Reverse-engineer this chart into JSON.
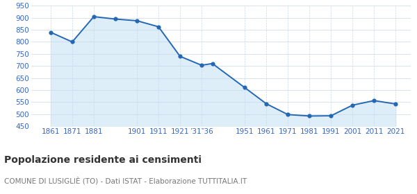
{
  "years": [
    1861,
    1871,
    1881,
    1891,
    1901,
    1911,
    1921,
    1931,
    1936,
    1951,
    1961,
    1971,
    1981,
    1991,
    2001,
    2011,
    2021
  ],
  "values": [
    840,
    800,
    905,
    895,
    888,
    863,
    740,
    703,
    710,
    610,
    543,
    498,
    492,
    493,
    537,
    556,
    542
  ],
  "x_ticks_pos": [
    1861,
    1871,
    1881,
    1901,
    1911,
    1921,
    1931,
    1951,
    1961,
    1971,
    1981,
    1991,
    2001,
    2011,
    2021
  ],
  "x_ticks_labels": [
    "1861",
    "1871",
    "1881",
    "1901",
    "1911",
    "1921",
    "’31‶36",
    "1951",
    "1961",
    "1971",
    "1981",
    "1991",
    "2001",
    "2011",
    "2021"
  ],
  "ylim": [
    450,
    950
  ],
  "yticks": [
    450,
    500,
    550,
    600,
    650,
    700,
    750,
    800,
    850,
    900,
    950
  ],
  "xlim_left": 1852,
  "xlim_right": 2028,
  "line_color": "#2468b4",
  "fill_color": "#ddeef8",
  "marker_color": "#2468b4",
  "bg_color": "#ffffff",
  "grid_color_h": "#c8d8e8",
  "grid_color_v": "#c8d8e8",
  "title": "Popolazione residente ai censimenti",
  "subtitle": "COMUNE DI LUSIGLIÈ (TO) - Dati ISTAT - Elaborazione TUTTITALIA.IT",
  "title_color": "#333333",
  "subtitle_color": "#777777",
  "axis_label_color": "#3366cc",
  "title_fontsize": 10,
  "subtitle_fontsize": 7.5,
  "tick_fontsize": 7.5,
  "ytick_fontsize": 7.5
}
